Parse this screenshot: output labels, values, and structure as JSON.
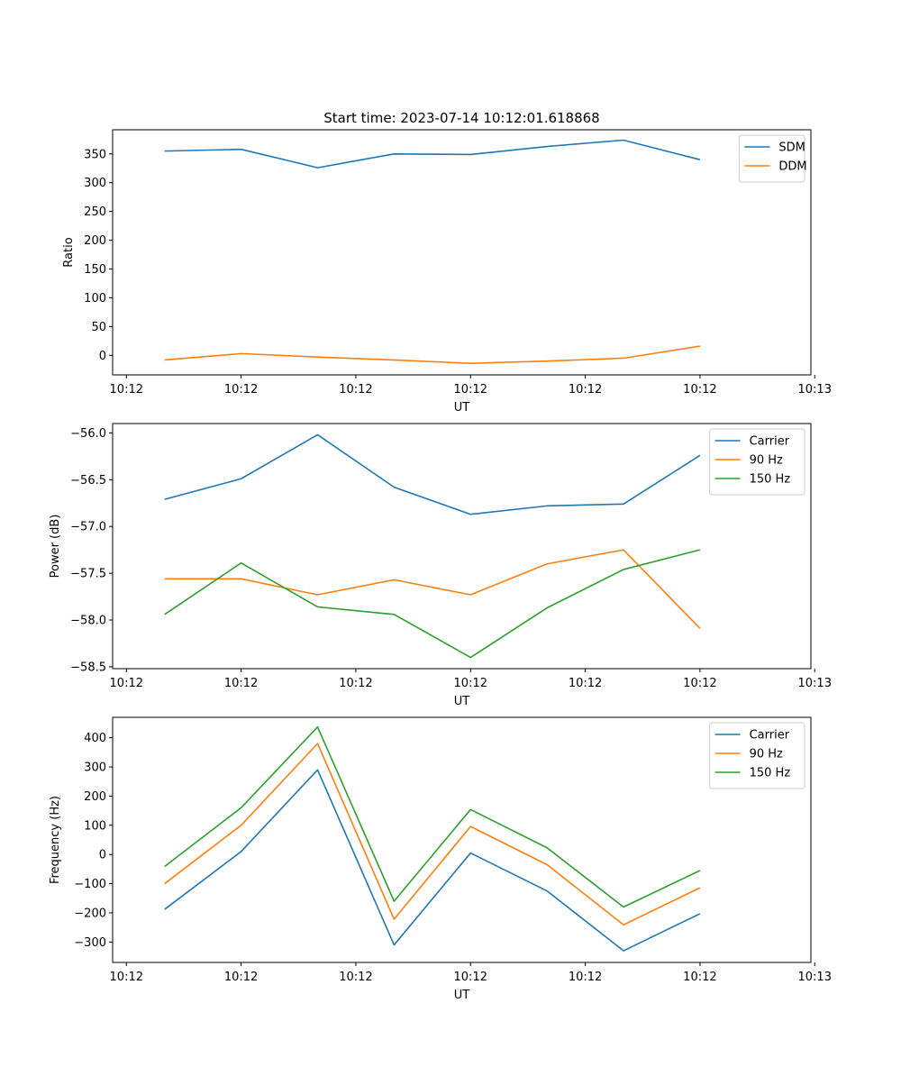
{
  "colors": {
    "blue": "#1f77b4",
    "orange": "#ff7f0e",
    "green": "#2ca02c"
  },
  "chart_data": [
    {
      "type": "line",
      "title": "Start time: 2023-07-14 10:12:01.618868",
      "xlabel": "UT",
      "ylabel": "Ratio",
      "xticks": [
        "10:12",
        "10:12",
        "10:12",
        "10:12",
        "10:12",
        "10:12",
        "10:13"
      ],
      "x": [
        1,
        2,
        3,
        4,
        5,
        6,
        7,
        8
      ],
      "xlim": [
        0.32,
        9.45
      ],
      "ylim": [
        -34,
        392
      ],
      "yticks": [
        0,
        50,
        100,
        150,
        200,
        250,
        300,
        350
      ],
      "legend_position": "top-right",
      "series": [
        {
          "name": "SDM",
          "color": "blue",
          "values": [
            355,
            358,
            326,
            350,
            349,
            363,
            374,
            340
          ]
        },
        {
          "name": "DDM",
          "color": "orange",
          "values": [
            -8,
            3,
            -3,
            -8,
            -14,
            -10,
            -5,
            16
          ]
        }
      ]
    },
    {
      "type": "line",
      "title": "",
      "xlabel": "UT",
      "ylabel": "Power (dB)",
      "xticks": [
        "10:12",
        "10:12",
        "10:12",
        "10:12",
        "10:12",
        "10:12",
        "10:13"
      ],
      "x": [
        1,
        2,
        3,
        4,
        5,
        6,
        7,
        8
      ],
      "xlim": [
        0.32,
        9.45
      ],
      "ylim": [
        -58.52,
        -55.9
      ],
      "yticks": [
        -58.5,
        -58.0,
        -57.5,
        -57.0,
        -56.5,
        -56.0
      ],
      "legend_position": "top-right",
      "series": [
        {
          "name": "Carrier",
          "color": "blue",
          "values": [
            -56.71,
            -56.49,
            -56.02,
            -56.58,
            -56.87,
            -56.78,
            -56.76,
            -56.24
          ]
        },
        {
          "name": "90 Hz",
          "color": "orange",
          "values": [
            -57.56,
            -57.56,
            -57.73,
            -57.57,
            -57.73,
            -57.4,
            -57.25,
            -58.09
          ]
        },
        {
          "name": "150 Hz",
          "color": "green",
          "values": [
            -57.94,
            -57.39,
            -57.86,
            -57.94,
            -58.4,
            -57.87,
            -57.46,
            -57.25
          ]
        }
      ]
    },
    {
      "type": "line",
      "title": "",
      "xlabel": "UT",
      "ylabel": "Frequency (Hz)",
      "xticks": [
        "10:12",
        "10:12",
        "10:12",
        "10:12",
        "10:12",
        "10:12",
        "10:13"
      ],
      "x": [
        1,
        2,
        3,
        4,
        5,
        6,
        7,
        8
      ],
      "xlim": [
        0.32,
        9.45
      ],
      "ylim": [
        -370,
        470
      ],
      "yticks": [
        -300,
        -200,
        -100,
        0,
        100,
        200,
        300,
        400
      ],
      "legend_position": "top-right",
      "series": [
        {
          "name": "Carrier",
          "color": "blue",
          "values": [
            -188,
            10,
            290,
            -310,
            5,
            -125,
            -330,
            -203
          ]
        },
        {
          "name": "90 Hz",
          "color": "orange",
          "values": [
            -100,
            100,
            380,
            -222,
            96,
            -35,
            -241,
            -114
          ]
        },
        {
          "name": "150 Hz",
          "color": "green",
          "values": [
            -41,
            160,
            437,
            -160,
            154,
            23,
            -180,
            -55
          ]
        }
      ]
    }
  ]
}
